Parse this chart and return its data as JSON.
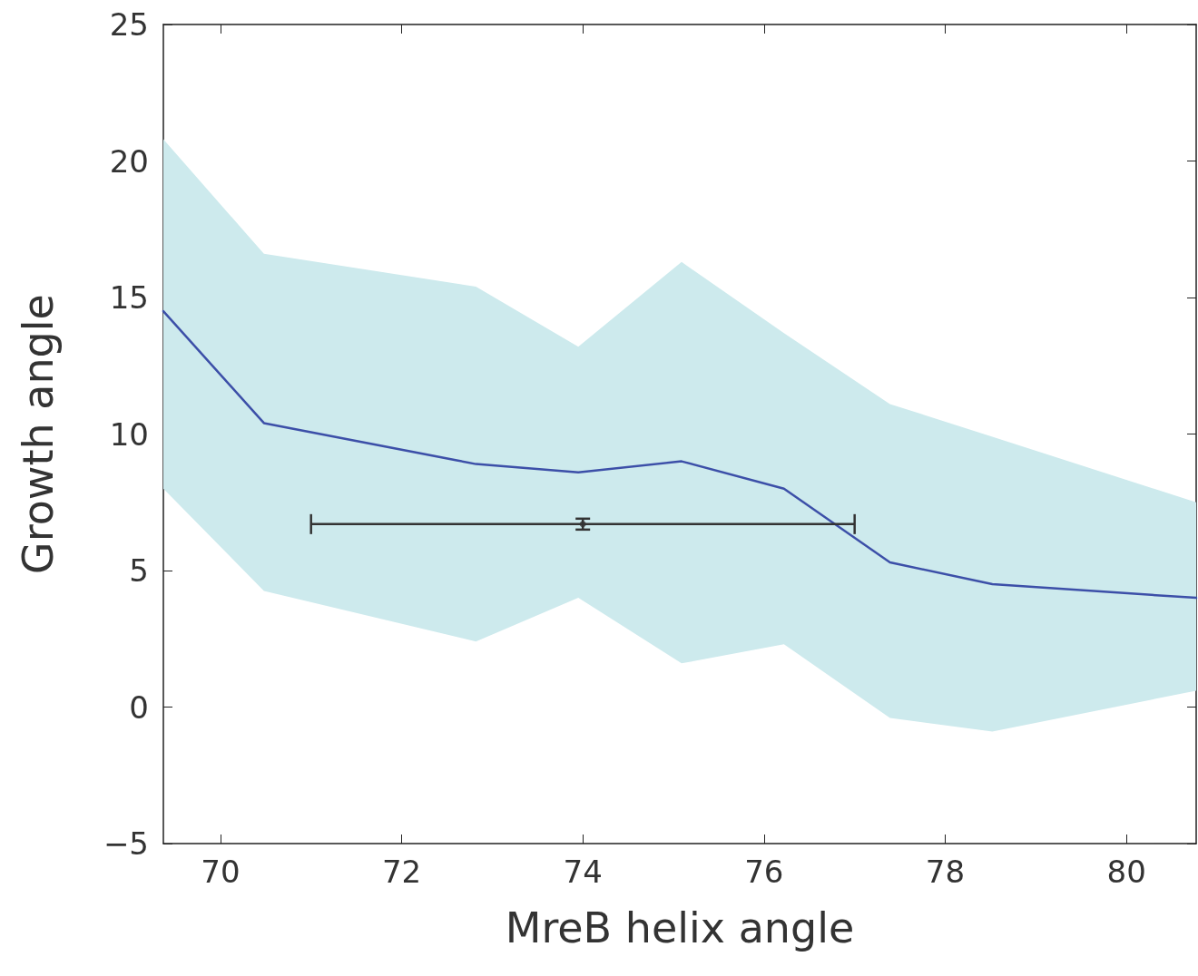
{
  "chart_data": {
    "type": "line",
    "xlabel": "MreB helix angle",
    "ylabel": "Growth angle",
    "xlim": [
      69.37,
      80.77
    ],
    "xticks": [
      70,
      72,
      74,
      76,
      78,
      80
    ],
    "ylim": [
      -5,
      25
    ],
    "yticks": [
      -5,
      0,
      5,
      10,
      15,
      20,
      25
    ],
    "grid": false,
    "marker": "none",
    "line_style": "solid",
    "series": [
      {
        "color": "#3c4fa8",
        "x": [
          69.37,
          70.48,
          72.82,
          73.95,
          75.09,
          76.22,
          77.39,
          78.52,
          80.77
        ],
        "values": [
          14.5,
          10.4,
          8.9,
          8.6,
          9.0,
          8.0,
          5.3,
          4.5,
          4.0
        ],
        "lower": [
          8.0,
          4.25,
          2.4,
          4.0,
          1.6,
          2.3,
          -0.4,
          -0.9,
          0.6
        ],
        "upper": [
          20.8,
          16.6,
          15.4,
          13.2,
          16.3,
          13.7,
          11.1,
          9.9,
          7.5
        ]
      },
      {
        "type": "scatter",
        "color": "#333333",
        "marker": "circle",
        "x": [
          74
        ],
        "values": [
          6.7
        ],
        "errors": [
          0.2
        ],
        "xerrors": [
          3
        ]
      }
    ]
  }
}
